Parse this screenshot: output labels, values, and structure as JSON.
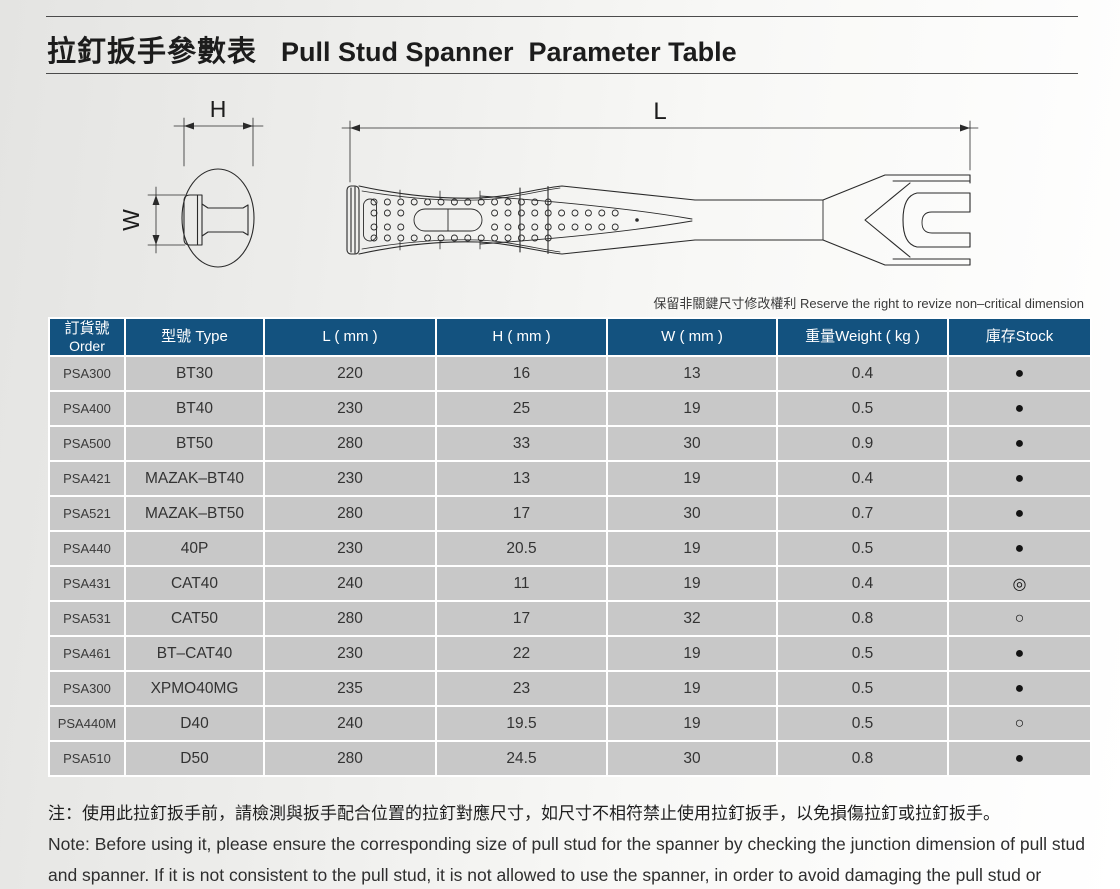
{
  "header": {
    "title_zh": "拉釘扳手參數表",
    "title_en": "Pull Stud Spanner  Parameter Table"
  },
  "drawing": {
    "dim_h": "H",
    "dim_w": "W",
    "dim_l": "L",
    "disclaimer": "保留非關鍵尺寸修改權利 Reserve the right to revize non–critical dimension"
  },
  "table": {
    "columns": [
      {
        "id": "order",
        "label": "訂貨號\nOrder"
      },
      {
        "id": "type",
        "label": "型號 Type"
      },
      {
        "id": "l",
        "label": "L ( mm )"
      },
      {
        "id": "h",
        "label": "H ( mm )"
      },
      {
        "id": "w",
        "label": "W ( mm )"
      },
      {
        "id": "weight",
        "label": "重量Weight ( kg )"
      },
      {
        "id": "stock",
        "label": "庫存Stock"
      }
    ],
    "rows": [
      {
        "order": "PSA300",
        "type": "BT30",
        "l": "220",
        "h": "16",
        "w": "13",
        "weight": "0.4",
        "stock": "●"
      },
      {
        "order": "PSA400",
        "type": "BT40",
        "l": "230",
        "h": "25",
        "w": "19",
        "weight": "0.5",
        "stock": "●"
      },
      {
        "order": "PSA500",
        "type": "BT50",
        "l": "280",
        "h": "33",
        "w": "30",
        "weight": "0.9",
        "stock": "●"
      },
      {
        "order": "PSA421",
        "type": "MAZAK–BT40",
        "l": "230",
        "h": "13",
        "w": "19",
        "weight": "0.4",
        "stock": "●"
      },
      {
        "order": "PSA521",
        "type": "MAZAK–BT50",
        "l": "280",
        "h": "17",
        "w": "30",
        "weight": "0.7",
        "stock": "●"
      },
      {
        "order": "PSA440",
        "type": "40P",
        "l": "230",
        "h": "20.5",
        "w": "19",
        "weight": "0.5",
        "stock": "●"
      },
      {
        "order": "PSA431",
        "type": "CAT40",
        "l": "240",
        "h": "11",
        "w": "19",
        "weight": "0.4",
        "stock": "◎"
      },
      {
        "order": "PSA531",
        "type": "CAT50",
        "l": "280",
        "h": "17",
        "w": "32",
        "weight": "0.8",
        "stock": "○"
      },
      {
        "order": "PSA461",
        "type": "BT–CAT40",
        "l": "230",
        "h": "22",
        "w": "19",
        "weight": "0.5",
        "stock": "●"
      },
      {
        "order": "PSA300",
        "type": "XPMO40MG",
        "l": "235",
        "h": "23",
        "w": "19",
        "weight": "0.5",
        "stock": "●"
      },
      {
        "order": "PSA440M",
        "type": "D40",
        "l": "240",
        "h": "19.5",
        "w": "19",
        "weight": "0.5",
        "stock": "○"
      },
      {
        "order": "PSA510",
        "type": "D50",
        "l": "280",
        "h": "24.5",
        "w": "30",
        "weight": "0.8",
        "stock": "●"
      }
    ]
  },
  "footnotes": {
    "zh": "注：使用此拉釘扳手前，請檢測與扳手配合位置的拉釘對應尺寸，如尺寸不相符禁止使用拉釘扳手，以免損傷拉釘或拉釘扳手。",
    "en": "Note: Before using it, please ensure the corresponding size of pull stud for the spanner by checking the junction dimension of pull stud and spanner. If it is not consistent to the pull stud, it is not allowed to use the spanner, in order to avoid damaging the pull stud or spanner."
  },
  "colors": {
    "header_bg": "#13527f",
    "row_bg": "#c8c8c8",
    "stock_symbol": "#141414"
  },
  "legend": {
    "stock_filled": "●",
    "stock_double": "◎",
    "stock_empty": "○"
  }
}
